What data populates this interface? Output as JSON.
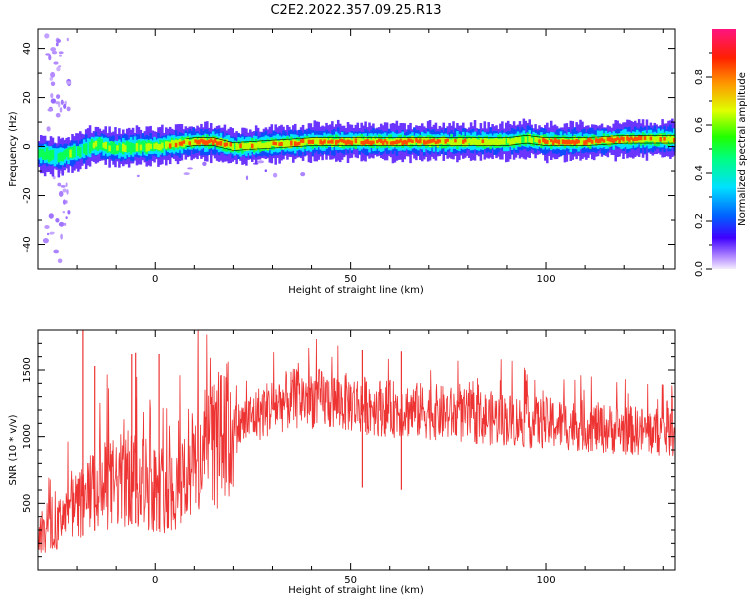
{
  "title": "C2E2.2022.357.09.25.R13",
  "chart_data": [
    {
      "type": "heatmap",
      "xlabel": "Height of straight line (km)",
      "ylabel": "Frequency (Hz)",
      "xlim": [
        -30,
        133
      ],
      "ylim": [
        -50,
        48
      ],
      "xticks": [
        0,
        50,
        100
      ],
      "yticks": [
        -40,
        -20,
        0,
        20,
        40
      ],
      "colorbar": {
        "label": "Normalized spectral amplitude",
        "range": [
          0.0,
          1.0
        ],
        "ticks": [
          0.0,
          0.2,
          0.4,
          0.6,
          0.8
        ],
        "tick_labels": [
          "0.0",
          "0.2",
          "0.4",
          "0.6",
          "0.8"
        ]
      },
      "ridge": {
        "x": [
          -30,
          -25,
          -20,
          -15,
          -10,
          -5,
          0,
          5,
          10,
          15,
          20,
          30,
          40,
          50,
          60,
          70,
          80,
          90,
          95,
          100,
          110,
          120,
          133
        ],
        "freq": [
          -3,
          -4,
          -2,
          1,
          -1,
          0,
          0,
          1,
          2,
          2,
          0,
          1,
          2,
          2,
          2,
          2,
          2,
          2,
          3,
          2,
          2,
          3,
          3
        ],
        "peak_amplitude": [
          0.45,
          0.55,
          0.5,
          0.6,
          0.55,
          0.6,
          0.65,
          0.8,
          0.9,
          0.95,
          0.7,
          0.75,
          0.85,
          0.9,
          0.88,
          0.85,
          0.75,
          0.7,
          0.65,
          0.85,
          0.9,
          0.85,
          0.75
        ]
      }
    },
    {
      "type": "line",
      "xlabel": "Height of straight line (km)",
      "ylabel": "SNR (10 * v/v)",
      "xlim": [
        -30,
        133
      ],
      "ylim": [
        0,
        1800
      ],
      "xticks": [
        0,
        50,
        100
      ],
      "yticks": [
        500,
        1000,
        1500
      ],
      "color": "#ee3333",
      "trend": {
        "x": [
          -30,
          -25,
          -20,
          -15,
          -10,
          -5,
          0,
          5,
          10,
          15,
          20,
          25,
          30,
          35,
          40,
          45,
          50,
          55,
          60,
          65,
          70,
          75,
          80,
          85,
          90,
          95,
          100,
          105,
          110,
          115,
          120,
          125,
          133
        ],
        "y": [
          250,
          330,
          480,
          600,
          650,
          700,
          620,
          600,
          800,
          950,
          1050,
          1150,
          1230,
          1280,
          1290,
          1270,
          1250,
          1230,
          1210,
          1200,
          1190,
          1170,
          1150,
          1140,
          1130,
          1110,
          1100,
          1090,
          1080,
          1060,
          1050,
          1040,
          1030
        ]
      },
      "spikes": [
        {
          "x": -18.5,
          "y": 1800
        },
        {
          "x": -15.5,
          "y": 1530
        },
        {
          "x": -6,
          "y": 1620
        },
        {
          "x": -5,
          "y": 1630
        },
        {
          "x": 1,
          "y": 1620
        },
        {
          "x": 53,
          "y": 1650
        },
        {
          "x": 63,
          "y": 1640
        }
      ]
    }
  ]
}
